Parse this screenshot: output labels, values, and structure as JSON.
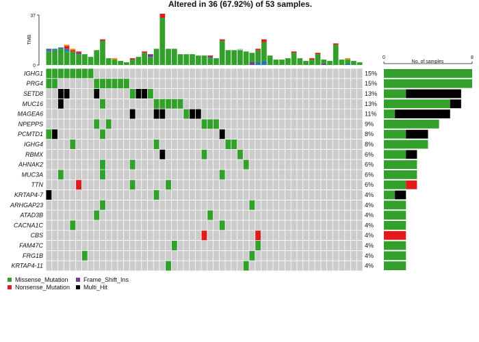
{
  "chart_data": {
    "type": "heatmap",
    "title": "Altered in 36 (67.92%) of 53 samples.",
    "tmb_axis": {
      "label": "TMB",
      "ticks": [
        0,
        37
      ],
      "max": 37
    },
    "samples_axis": {
      "label": "No. of samples",
      "ticks": [
        0,
        8
      ],
      "max": 8
    },
    "n_samples": 53,
    "colors": {
      "Missense_Mutation": "#33a02c",
      "Nonsense_Mutation": "#e31a1c",
      "Frame_Shift_Ins": "#6a3d9a",
      "Multi_Hit": "#000000",
      "Frame_Shift_Del": "#1f78b4",
      "In_Frame_Del": "#ff7f00",
      "Splice_Site": "#a6cee3",
      "empty": "#cccccc"
    },
    "legend": [
      {
        "label": "Missense_Mutation",
        "class": "Missense_Mutation"
      },
      {
        "label": "Frame_Shift_Ins",
        "class": "Frame_Shift_Ins"
      },
      {
        "label": "Nonsense_Mutation",
        "class": "Nonsense_Mutation"
      },
      {
        "label": "Multi_Hit",
        "class": "Multi_Hit"
      }
    ],
    "tmb": [
      [
        [
          "Missense_Mutation",
          10
        ],
        [
          "Frame_Shift_Del",
          1
        ],
        [
          "Frame_Shift_Ins",
          1
        ]
      ],
      [
        [
          "Missense_Mutation",
          11
        ],
        [
          "Frame_Shift_Del",
          1
        ]
      ],
      [
        [
          "Missense_Mutation",
          12
        ],
        [
          "Frame_Shift_Del",
          1
        ]
      ],
      [
        [
          "Missense_Mutation",
          10
        ],
        [
          "Frame_Shift_Del",
          2
        ],
        [
          "Nonsense_Mutation",
          2
        ],
        [
          "In_Frame_Del",
          1
        ]
      ],
      [
        [
          "Missense_Mutation",
          10
        ],
        [
          "Nonsense_Mutation",
          1
        ],
        [
          "In_Frame_Del",
          1
        ]
      ],
      [
        [
          "Missense_Mutation",
          8
        ],
        [
          "Frame_Shift_Ins",
          1
        ],
        [
          "Nonsense_Mutation",
          1
        ]
      ],
      [
        [
          "Missense_Mutation",
          8
        ]
      ],
      [
        [
          "Missense_Mutation",
          6
        ]
      ],
      [
        [
          "Missense_Mutation",
          11
        ]
      ],
      [
        [
          "Missense_Mutation",
          18
        ],
        [
          "Nonsense_Mutation",
          1
        ]
      ],
      [
        [
          "Missense_Mutation",
          5
        ]
      ],
      [
        [
          "Missense_Mutation",
          4
        ],
        [
          "In_Frame_Del",
          1
        ]
      ],
      [
        [
          "Missense_Mutation",
          3
        ]
      ],
      [
        [
          "Missense_Mutation",
          2
        ]
      ],
      [
        [
          "Missense_Mutation",
          4
        ],
        [
          "Nonsense_Mutation",
          1
        ]
      ],
      [
        [
          "Missense_Mutation",
          6
        ]
      ],
      [
        [
          "Missense_Mutation",
          9
        ],
        [
          "Nonsense_Mutation",
          1
        ]
      ],
      [
        [
          "Missense_Mutation",
          6
        ],
        [
          "Frame_Shift_Ins",
          2
        ]
      ],
      [
        [
          "Missense_Mutation",
          12
        ]
      ],
      [
        [
          "Missense_Mutation",
          35
        ],
        [
          "Nonsense_Mutation",
          3
        ]
      ],
      [
        [
          "Missense_Mutation",
          12
        ]
      ],
      [
        [
          "Missense_Mutation",
          12
        ]
      ],
      [
        [
          "Missense_Mutation",
          8
        ]
      ],
      [
        [
          "Missense_Mutation",
          8
        ]
      ],
      [
        [
          "Missense_Mutation",
          8
        ]
      ],
      [
        [
          "Missense_Mutation",
          7
        ]
      ],
      [
        [
          "Missense_Mutation",
          7
        ]
      ],
      [
        [
          "Missense_Mutation",
          5
        ],
        [
          "Frame_Shift_Del",
          1
        ],
        [
          "Nonsense_Mutation",
          1
        ]
      ],
      [
        [
          "Missense_Mutation",
          5
        ]
      ],
      [
        [
          "Missense_Mutation",
          18
        ],
        [
          "Nonsense_Mutation",
          1
        ]
      ],
      [
        [
          "Missense_Mutation",
          11
        ]
      ],
      [
        [
          "Missense_Mutation",
          11
        ]
      ],
      [
        [
          "Missense_Mutation",
          11
        ],
        [
          "Splice_Site",
          1
        ]
      ],
      [
        [
          "Missense_Mutation",
          10
        ]
      ],
      [
        [
          "Frame_Shift_Ins",
          2
        ],
        [
          "Missense_Mutation",
          7
        ]
      ],
      [
        [
          "Frame_Shift_Del",
          2
        ],
        [
          "Missense_Mutation",
          9
        ],
        [
          "Nonsense_Mutation",
          1
        ]
      ],
      [
        [
          "Frame_Shift_Del",
          3
        ],
        [
          "Missense_Mutation",
          14
        ],
        [
          "Nonsense_Mutation",
          2
        ]
      ],
      [
        [
          "Missense_Mutation",
          7
        ]
      ],
      [
        [
          "Missense_Mutation",
          4
        ]
      ],
      [
        [
          "Missense_Mutation",
          4
        ]
      ],
      [
        [
          "Missense_Mutation",
          5
        ]
      ],
      [
        [
          "Missense_Mutation",
          9
        ],
        [
          "Nonsense_Mutation",
          1
        ]
      ],
      [
        [
          "Missense_Mutation",
          5
        ]
      ],
      [
        [
          "Missense_Mutation",
          3
        ]
      ],
      [
        [
          "Missense_Mutation",
          4
        ],
        [
          "Nonsense_Mutation",
          1
        ]
      ],
      [
        [
          "Missense_Mutation",
          8
        ],
        [
          "Nonsense_Mutation",
          1
        ]
      ],
      [
        [
          "Frame_Shift_Ins",
          1
        ],
        [
          "Missense_Mutation",
          3
        ]
      ],
      [
        [
          "Missense_Mutation",
          3
        ]
      ],
      [
        [
          "Missense_Mutation",
          15
        ],
        [
          "Nonsense_Mutation",
          1
        ]
      ],
      [
        [
          "Missense_Mutation",
          4
        ]
      ],
      [
        [
          "Frame_Shift_Del",
          1
        ],
        [
          "Missense_Mutation",
          3
        ],
        [
          "In_Frame_Del",
          1
        ]
      ],
      [
        [
          "Missense_Mutation",
          3
        ]
      ],
      [
        [
          "Missense_Mutation",
          2
        ]
      ]
    ],
    "genes": [
      {
        "name": "IGHG1",
        "pct": "15%",
        "counts": [
          [
            "Missense_Mutation",
            8
          ]
        ],
        "calls": [
          [
            0,
            "Missense_Mutation"
          ],
          [
            1,
            "Missense_Mutation"
          ],
          [
            2,
            "Missense_Mutation"
          ],
          [
            3,
            "Missense_Mutation"
          ],
          [
            4,
            "Missense_Mutation"
          ],
          [
            5,
            "Missense_Mutation"
          ],
          [
            6,
            "Missense_Mutation"
          ],
          [
            7,
            "Missense_Mutation"
          ]
        ]
      },
      {
        "name": "PRG4",
        "pct": "15%",
        "counts": [
          [
            "Missense_Mutation",
            8
          ]
        ],
        "calls": [
          [
            0,
            "Missense_Mutation"
          ],
          [
            1,
            "Missense_Mutation"
          ],
          [
            8,
            "Missense_Mutation"
          ],
          [
            9,
            "Missense_Mutation"
          ],
          [
            10,
            "Missense_Mutation"
          ],
          [
            11,
            "Missense_Mutation"
          ],
          [
            12,
            "Missense_Mutation"
          ],
          [
            13,
            "Missense_Mutation"
          ]
        ]
      },
      {
        "name": "SETD8",
        "pct": "13%",
        "counts": [
          [
            "Missense_Mutation",
            2
          ],
          [
            "Multi_Hit",
            5
          ]
        ],
        "calls": [
          [
            2,
            "Multi_Hit"
          ],
          [
            3,
            "Multi_Hit"
          ],
          [
            8,
            "Multi_Hit"
          ],
          [
            14,
            "Missense_Mutation"
          ],
          [
            15,
            "Multi_Hit"
          ],
          [
            16,
            "Multi_Hit"
          ],
          [
            17,
            "Missense_Mutation"
          ]
        ]
      },
      {
        "name": "MUC16",
        "pct": "13%",
        "counts": [
          [
            "Missense_Mutation",
            6
          ],
          [
            "Multi_Hit",
            1
          ]
        ],
        "calls": [
          [
            2,
            "Multi_Hit"
          ],
          [
            9,
            "Missense_Mutation"
          ],
          [
            18,
            "Missense_Mutation"
          ],
          [
            19,
            "Missense_Mutation"
          ],
          [
            20,
            "Missense_Mutation"
          ],
          [
            21,
            "Missense_Mutation"
          ],
          [
            22,
            "Missense_Mutation"
          ]
        ]
      },
      {
        "name": "MAGEA6",
        "pct": "11%",
        "counts": [
          [
            "Missense_Mutation",
            1
          ],
          [
            "Multi_Hit",
            5
          ]
        ],
        "calls": [
          [
            14,
            "Multi_Hit"
          ],
          [
            18,
            "Multi_Hit"
          ],
          [
            19,
            "Multi_Hit"
          ],
          [
            23,
            "Missense_Mutation"
          ],
          [
            24,
            "Multi_Hit"
          ],
          [
            25,
            "Multi_Hit"
          ]
        ]
      },
      {
        "name": "NPEPPS",
        "pct": "9%",
        "counts": [
          [
            "Missense_Mutation",
            5
          ]
        ],
        "calls": [
          [
            8,
            "Missense_Mutation"
          ],
          [
            10,
            "Missense_Mutation"
          ],
          [
            26,
            "Missense_Mutation"
          ],
          [
            27,
            "Missense_Mutation"
          ],
          [
            28,
            "Missense_Mutation"
          ]
        ]
      },
      {
        "name": "PCMTD1",
        "pct": "8%",
        "counts": [
          [
            "Missense_Mutation",
            2
          ],
          [
            "Multi_Hit",
            2
          ]
        ],
        "calls": [
          [
            0,
            "Missense_Mutation"
          ],
          [
            1,
            "Multi_Hit"
          ],
          [
            9,
            "Missense_Mutation"
          ],
          [
            29,
            "Multi_Hit"
          ]
        ]
      },
      {
        "name": "IGHG4",
        "pct": "8%",
        "counts": [
          [
            "Missense_Mutation",
            4
          ]
        ],
        "calls": [
          [
            4,
            "Missense_Mutation"
          ],
          [
            18,
            "Missense_Mutation"
          ],
          [
            30,
            "Missense_Mutation"
          ],
          [
            31,
            "Missense_Mutation"
          ]
        ]
      },
      {
        "name": "RBMX",
        "pct": "6%",
        "counts": [
          [
            "Missense_Mutation",
            2
          ],
          [
            "Multi_Hit",
            1
          ]
        ],
        "calls": [
          [
            19,
            "Multi_Hit"
          ],
          [
            26,
            "Missense_Mutation"
          ],
          [
            32,
            "Missense_Mutation"
          ]
        ]
      },
      {
        "name": "AHNAK2",
        "pct": "6%",
        "counts": [
          [
            "Missense_Mutation",
            3
          ]
        ],
        "calls": [
          [
            9,
            "Missense_Mutation"
          ],
          [
            14,
            "Missense_Mutation"
          ],
          [
            33,
            "Missense_Mutation"
          ]
        ]
      },
      {
        "name": "MUC3A",
        "pct": "6%",
        "counts": [
          [
            "Missense_Mutation",
            3
          ]
        ],
        "calls": [
          [
            2,
            "Missense_Mutation"
          ],
          [
            9,
            "Missense_Mutation"
          ],
          [
            29,
            "Missense_Mutation"
          ]
        ]
      },
      {
        "name": "TTN",
        "pct": "6%",
        "counts": [
          [
            "Missense_Mutation",
            2
          ],
          [
            "Nonsense_Mutation",
            1
          ]
        ],
        "calls": [
          [
            5,
            "Nonsense_Mutation"
          ],
          [
            14,
            "Missense_Mutation"
          ],
          [
            20,
            "Missense_Mutation"
          ]
        ]
      },
      {
        "name": "KRTAP4-7",
        "pct": "4%",
        "counts": [
          [
            "Missense_Mutation",
            1
          ],
          [
            "Multi_Hit",
            1
          ]
        ],
        "calls": [
          [
            0,
            "Multi_Hit"
          ],
          [
            18,
            "Missense_Mutation"
          ]
        ]
      },
      {
        "name": "ARHGAP23",
        "pct": "4%",
        "counts": [
          [
            "Missense_Mutation",
            2
          ]
        ],
        "calls": [
          [
            9,
            "Missense_Mutation"
          ],
          [
            34,
            "Missense_Mutation"
          ]
        ]
      },
      {
        "name": "ATAD3B",
        "pct": "4%",
        "counts": [
          [
            "Missense_Mutation",
            2
          ]
        ],
        "calls": [
          [
            8,
            "Missense_Mutation"
          ],
          [
            27,
            "Missense_Mutation"
          ]
        ]
      },
      {
        "name": "CACNA1C",
        "pct": "4%",
        "counts": [
          [
            "Missense_Mutation",
            2
          ]
        ],
        "calls": [
          [
            4,
            "Missense_Mutation"
          ],
          [
            29,
            "Missense_Mutation"
          ]
        ]
      },
      {
        "name": "CBS",
        "pct": "4%",
        "counts": [
          [
            "Nonsense_Mutation",
            2
          ]
        ],
        "calls": [
          [
            26,
            "Nonsense_Mutation"
          ],
          [
            35,
            "Nonsense_Mutation"
          ]
        ]
      },
      {
        "name": "FAM47C",
        "pct": "4%",
        "counts": [
          [
            "Missense_Mutation",
            2
          ]
        ],
        "calls": [
          [
            21,
            "Missense_Mutation"
          ],
          [
            35,
            "Missense_Mutation"
          ]
        ]
      },
      {
        "name": "FRG1B",
        "pct": "4%",
        "counts": [
          [
            "Missense_Mutation",
            2
          ]
        ],
        "calls": [
          [
            6,
            "Missense_Mutation"
          ],
          [
            34,
            "Missense_Mutation"
          ]
        ]
      },
      {
        "name": "KRTAP4-11",
        "pct": "4%",
        "counts": [
          [
            "Missense_Mutation",
            2
          ]
        ],
        "calls": [
          [
            20,
            "Missense_Mutation"
          ],
          [
            33,
            "Missense_Mutation"
          ]
        ]
      }
    ]
  }
}
